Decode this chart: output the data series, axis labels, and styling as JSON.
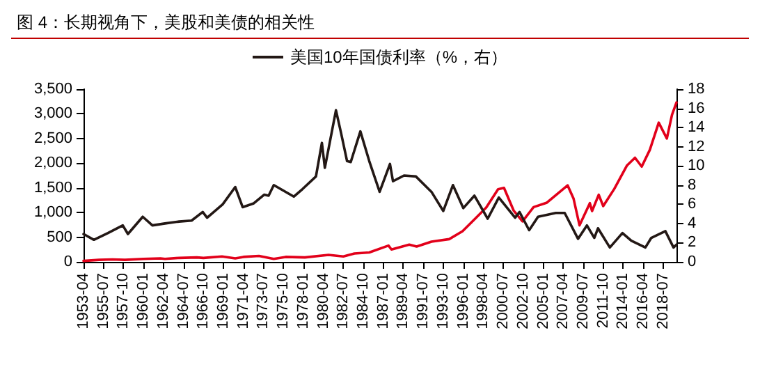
{
  "chart_data": {
    "type": "line",
    "title": "图 4：长期视角下，美股和美债的相关性",
    "xlim": [
      "1953-04",
      "2020-01"
    ],
    "xticks": [
      "1953-04",
      "1955-07",
      "1957-10",
      "1960-01",
      "1962-04",
      "1964-07",
      "1966-10",
      "1969-01",
      "1971-04",
      "1973-07",
      "1975-10",
      "1978-01",
      "1980-04",
      "1982-07",
      "1984-10",
      "1987-01",
      "1989-04",
      "1991-07",
      "1993-10",
      "1996-01",
      "1998-04",
      "2000-07",
      "2002-10",
      "2005-01",
      "2007-04",
      "2009-07",
      "2011-10",
      "2014-01",
      "2016-04",
      "2018-07"
    ],
    "ylim": [
      0,
      3500
    ],
    "yticks": [
      0,
      500,
      {
        "value": 1000,
        "label": "1,000"
      },
      {
        "value": 1500,
        "label": "1,500"
      },
      {
        "value": 2000,
        "label": "2,000"
      },
      {
        "value": 2500,
        "label": "2,500"
      },
      {
        "value": 3000,
        "label": "3,000"
      },
      {
        "value": 3500,
        "label": "3,500"
      }
    ],
    "y2lim": [
      0,
      18
    ],
    "y2ticks": [
      0,
      2,
      4,
      6,
      8,
      10,
      12,
      14,
      16,
      18
    ],
    "legend": "top",
    "grid": false,
    "marker": "none",
    "line_style": "solid",
    "series": [
      {
        "color": "#e2001a",
        "x": [
          "1953-04",
          "1955-01",
          "1956-07",
          "1957-12",
          "1960-01",
          "1961-12",
          "1962-06",
          "1964-01",
          "1966-01",
          "1966-10",
          "1968-11",
          "1970-05",
          "1971-04",
          "1973-01",
          "1974-09",
          "1976-01",
          "1978-03",
          "1980-11",
          "1982-07",
          "1983-10",
          "1985-06",
          "1987-08",
          "1987-12",
          "1989-12",
          "1990-10",
          "1992-06",
          "1994-06",
          "1995-12",
          "1997-06",
          "1998-08",
          "1999-12",
          "2000-08",
          "2001-09",
          "2002-09",
          "2003-12",
          "2005-06",
          "2007-10",
          "2008-06",
          "2009-02",
          "2010-04",
          "2010-07",
          "2011-04",
          "2011-10",
          "2013-01",
          "2014-06",
          "2015-05",
          "2016-02",
          "2017-01",
          "2018-01",
          "2018-12",
          "2019-07",
          "2020-01"
        ],
        "values": [
          20,
          40,
          50,
          40,
          60,
          70,
          60,
          80,
          90,
          80,
          110,
          70,
          100,
          120,
          60,
          100,
          90,
          140,
          110,
          170,
          190,
          330,
          250,
          350,
          310,
          410,
          460,
          620,
          890,
          1100,
          1470,
          1500,
          1040,
          820,
          1110,
          1200,
          1550,
          1280,
          740,
          1190,
          1030,
          1360,
          1130,
          1480,
          1950,
          2110,
          1930,
          2270,
          2820,
          2500,
          2980,
          3230
        ]
      },
      {
        "name": "美国10年国债利率（%，右）",
        "color": "#231815",
        "axis": "y2",
        "x": [
          "1953-04",
          "1954-06",
          "1956-01",
          "1957-09",
          "1958-04",
          "1959-12",
          "1961-01",
          "1962-06",
          "1964-01",
          "1965-06",
          "1966-09",
          "1967-03",
          "1968-12",
          "1970-05",
          "1971-03",
          "1972-06",
          "1973-08",
          "1974-02",
          "1974-09",
          "1976-12",
          "1977-12",
          "1979-06",
          "1980-02",
          "1980-06",
          "1981-01",
          "1981-09",
          "1982-04",
          "1982-12",
          "1983-05",
          "1984-06",
          "1985-06",
          "1986-08",
          "1987-10",
          "1988-02",
          "1989-05",
          "1990-09",
          "1992-06",
          "1993-10",
          "1994-11",
          "1996-01",
          "1997-04",
          "1998-10",
          "2000-01",
          "2001-11",
          "2002-05",
          "2003-06",
          "2004-06",
          "2006-06",
          "2007-06",
          "2008-12",
          "2009-12",
          "2010-10",
          "2011-03",
          "2012-07",
          "2013-12",
          "2014-12",
          "2016-07",
          "2017-03",
          "2018-10",
          "2019-09",
          "2020-01"
        ],
        "values": [
          2.9,
          2.3,
          3.0,
          3.8,
          2.9,
          4.7,
          3.8,
          4.0,
          4.2,
          4.3,
          5.2,
          4.6,
          6.0,
          7.8,
          5.7,
          6.1,
          7.0,
          6.9,
          8.0,
          6.8,
          7.6,
          8.9,
          12.4,
          9.8,
          12.6,
          15.8,
          13.4,
          10.5,
          10.4,
          13.6,
          10.5,
          7.3,
          10.2,
          8.4,
          9.0,
          8.9,
          7.3,
          5.3,
          8.0,
          5.6,
          6.9,
          4.5,
          6.7,
          4.6,
          5.2,
          3.3,
          4.7,
          5.1,
          5.1,
          2.4,
          3.8,
          2.5,
          3.5,
          1.5,
          3.0,
          2.2,
          1.5,
          2.5,
          3.2,
          1.5,
          1.8
        ]
      }
    ]
  }
}
